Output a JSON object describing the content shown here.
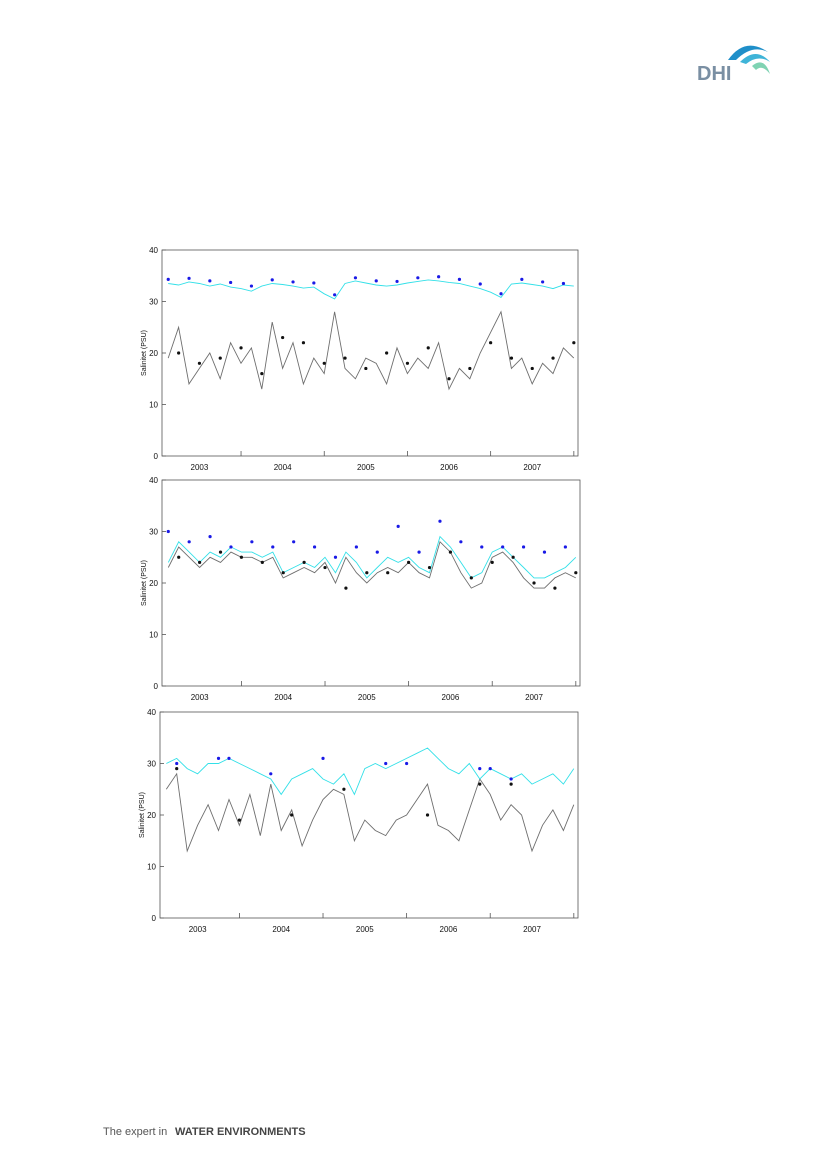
{
  "logo": "DHI",
  "footer": {
    "lead": "The expert in",
    "strong": "WATER ENVIRONMENTS"
  },
  "chart_data": [
    {
      "type": "line",
      "ylabel": "Salinitet (PSU)",
      "xlim": [
        2002.55,
        2007.55
      ],
      "ylim": [
        0,
        40
      ],
      "yticks": [
        0,
        10,
        20,
        30,
        40
      ],
      "xticks": [
        {
          "value": 2003.5,
          "label": "2003"
        },
        {
          "value": 2004.5,
          "label": "2004"
        },
        {
          "value": 2005.5,
          "label": "2005"
        },
        {
          "value": 2006.5,
          "label": "2006"
        },
        {
          "value": 2007.5,
          "label": "2007"
        }
      ],
      "x": [
        2002.625,
        2002.75,
        2002.875,
        2003.0,
        2003.125,
        2003.25,
        2003.375,
        2003.5,
        2003.625,
        2003.75,
        2003.875,
        2004.0,
        2004.125,
        2004.25,
        2004.375,
        2004.5,
        2004.625,
        2004.75,
        2004.875,
        2005.0,
        2005.125,
        2005.25,
        2005.375,
        2005.5,
        2005.625,
        2005.75,
        2005.875,
        2006.0,
        2006.125,
        2006.25,
        2006.375,
        2006.5,
        2006.625,
        2006.75,
        2006.875,
        2007.0,
        2007.125,
        2007.25,
        2007.375,
        2007.5
      ],
      "series": [
        {
          "marker": "line",
          "color": "#6e6e6e",
          "values": [
            19,
            25,
            14,
            17,
            20,
            15,
            22,
            18,
            21,
            13,
            26,
            17,
            22,
            14,
            19,
            16,
            28,
            17,
            15,
            19,
            18,
            14,
            21,
            16,
            19,
            17,
            22,
            13,
            17,
            15,
            20,
            24,
            28,
            17,
            19,
            14,
            18,
            16,
            21,
            19
          ]
        },
        {
          "marker": "line",
          "color": "#33e0e8",
          "values": [
            33.5,
            33.2,
            33.8,
            33.5,
            33.0,
            33.4,
            32.8,
            32.5,
            32.0,
            33.0,
            33.5,
            33.3,
            33.0,
            32.6,
            32.8,
            31.5,
            30.5,
            33.5,
            34.0,
            33.6,
            33.2,
            33.0,
            33.2,
            33.6,
            33.9,
            34.2,
            34.0,
            33.7,
            33.5,
            33.0,
            32.5,
            31.8,
            30.8,
            33.4,
            33.6,
            33.3,
            33.0,
            32.5,
            33.2,
            33.0
          ]
        },
        {
          "marker": "point",
          "color": "#111111",
          "values": [
            null,
            20,
            null,
            18,
            null,
            19,
            null,
            21,
            null,
            16,
            null,
            23,
            null,
            22,
            null,
            18,
            null,
            19,
            null,
            17,
            null,
            20,
            null,
            18,
            null,
            21,
            null,
            15,
            null,
            17,
            null,
            22,
            null,
            19,
            null,
            17,
            null,
            19,
            null,
            22
          ]
        },
        {
          "marker": "point",
          "color": "#1a1ae6",
          "values": [
            34.3,
            null,
            34.5,
            null,
            34.0,
            null,
            33.7,
            null,
            33.0,
            null,
            34.2,
            null,
            33.8,
            null,
            33.6,
            null,
            31.3,
            null,
            34.6,
            null,
            34.0,
            null,
            33.9,
            null,
            34.6,
            null,
            34.8,
            null,
            34.3,
            null,
            33.4,
            null,
            31.5,
            null,
            34.3,
            null,
            33.8,
            null,
            33.5,
            null
          ]
        }
      ]
    },
    {
      "type": "line",
      "ylabel": "Salinitet (PSU)",
      "xlim": [
        2002.55,
        2007.55
      ],
      "ylim": [
        0,
        40
      ],
      "yticks": [
        0,
        10,
        20,
        30,
        40
      ],
      "xticks": [
        {
          "value": 2003.5,
          "label": "2003"
        },
        {
          "value": 2004.5,
          "label": "2004"
        },
        {
          "value": 2005.5,
          "label": "2005"
        },
        {
          "value": 2006.5,
          "label": "2006"
        },
        {
          "value": 2007.5,
          "label": "2007"
        }
      ],
      "x": [
        2002.625,
        2002.75,
        2002.875,
        2003.0,
        2003.125,
        2003.25,
        2003.375,
        2003.5,
        2003.625,
        2003.75,
        2003.875,
        2004.0,
        2004.125,
        2004.25,
        2004.375,
        2004.5,
        2004.625,
        2004.75,
        2004.875,
        2005.0,
        2005.125,
        2005.25,
        2005.375,
        2005.5,
        2005.625,
        2005.75,
        2005.875,
        2006.0,
        2006.125,
        2006.25,
        2006.375,
        2006.5,
        2006.625,
        2006.75,
        2006.875,
        2007.0,
        2007.125,
        2007.25,
        2007.375,
        2007.5
      ],
      "series": [
        {
          "marker": "line",
          "color": "#6e6e6e",
          "values": [
            23,
            27,
            25,
            23,
            25,
            24,
            26,
            25,
            25,
            24,
            25,
            21,
            22,
            23,
            22,
            24,
            20,
            25,
            22,
            20,
            22,
            23,
            22,
            24,
            22,
            21,
            28,
            26,
            22,
            19,
            20,
            25,
            26,
            24,
            21,
            19,
            19,
            21,
            22,
            21
          ]
        },
        {
          "marker": "line",
          "color": "#33e0e8",
          "values": [
            24,
            28,
            26,
            24,
            26,
            25,
            27,
            26,
            26,
            25,
            26,
            22,
            23,
            24,
            23,
            25,
            22,
            26,
            24,
            21,
            23,
            25,
            24,
            25,
            23,
            22,
            29,
            27,
            24,
            21,
            22,
            26,
            27,
            25,
            23,
            21,
            21,
            22,
            23,
            25
          ]
        },
        {
          "marker": "point",
          "color": "#111111",
          "values": [
            null,
            25,
            null,
            24,
            null,
            26,
            null,
            25,
            null,
            24,
            null,
            22,
            null,
            24,
            null,
            23,
            null,
            19,
            null,
            22,
            null,
            22,
            null,
            24,
            null,
            23,
            null,
            26,
            null,
            21,
            null,
            24,
            null,
            25,
            null,
            20,
            null,
            19,
            null,
            22
          ]
        },
        {
          "marker": "point",
          "color": "#1a1ae6",
          "values": [
            30,
            null,
            28,
            null,
            29,
            null,
            27,
            null,
            28,
            null,
            27,
            null,
            28,
            null,
            27,
            null,
            25,
            null,
            27,
            null,
            26,
            null,
            31,
            null,
            26,
            null,
            32,
            null,
            28,
            null,
            27,
            null,
            27,
            null,
            27,
            null,
            26,
            null,
            27,
            null
          ]
        }
      ]
    },
    {
      "type": "line",
      "ylabel": "Salinitet (PSU)",
      "xlim": [
        2002.55,
        2007.55
      ],
      "ylim": [
        0,
        40
      ],
      "yticks": [
        0,
        10,
        20,
        30,
        40
      ],
      "xticks": [
        {
          "value": 2003.5,
          "label": "2003"
        },
        {
          "value": 2004.5,
          "label": "2004"
        },
        {
          "value": 2005.5,
          "label": "2005"
        },
        {
          "value": 2006.5,
          "label": "2006"
        },
        {
          "value": 2007.5,
          "label": "2007"
        }
      ],
      "x": [
        2002.625,
        2002.75,
        2002.875,
        2003.0,
        2003.125,
        2003.25,
        2003.375,
        2003.5,
        2003.625,
        2003.75,
        2003.875,
        2004.0,
        2004.125,
        2004.25,
        2004.375,
        2004.5,
        2004.625,
        2004.75,
        2004.875,
        2005.0,
        2005.125,
        2005.25,
        2005.375,
        2005.5,
        2005.625,
        2005.75,
        2005.875,
        2006.0,
        2006.125,
        2006.25,
        2006.375,
        2006.5,
        2006.625,
        2006.75,
        2006.875,
        2007.0,
        2007.125,
        2007.25,
        2007.375,
        2007.5
      ],
      "series": [
        {
          "marker": "line",
          "color": "#6e6e6e",
          "values": [
            25,
            28,
            13,
            18,
            22,
            17,
            23,
            18,
            24,
            16,
            26,
            17,
            21,
            14,
            19,
            23,
            25,
            24,
            15,
            19,
            17,
            16,
            19,
            20,
            23,
            26,
            18,
            17,
            15,
            21,
            27,
            24,
            19,
            22,
            20,
            13,
            18,
            21,
            17,
            22
          ]
        },
        {
          "marker": "line",
          "color": "#33e0e8",
          "values": [
            30,
            31,
            29,
            28,
            30,
            30,
            31,
            30,
            29,
            28,
            27,
            24,
            27,
            28,
            29,
            27,
            26,
            28,
            24,
            29,
            30,
            29,
            30,
            31,
            32,
            33,
            31,
            29,
            28,
            30,
            27,
            29,
            28,
            27,
            28,
            26,
            27,
            28,
            26,
            29
          ]
        },
        {
          "marker": "point",
          "color": "#111111",
          "values": [
            null,
            29,
            null,
            null,
            null,
            null,
            null,
            19,
            null,
            null,
            null,
            null,
            20,
            null,
            null,
            null,
            null,
            25,
            null,
            null,
            null,
            null,
            null,
            null,
            null,
            20,
            null,
            null,
            null,
            null,
            26,
            null,
            null,
            26,
            null,
            null,
            null,
            null,
            null,
            null
          ]
        },
        {
          "marker": "point",
          "color": "#1a1ae6",
          "values": [
            null,
            30,
            null,
            null,
            null,
            31,
            31,
            null,
            null,
            null,
            28,
            null,
            null,
            null,
            null,
            31,
            null,
            null,
            null,
            null,
            null,
            30,
            null,
            30,
            null,
            null,
            null,
            null,
            null,
            null,
            29,
            29,
            null,
            27,
            null,
            null,
            null,
            null,
            null,
            null
          ]
        }
      ]
    }
  ]
}
